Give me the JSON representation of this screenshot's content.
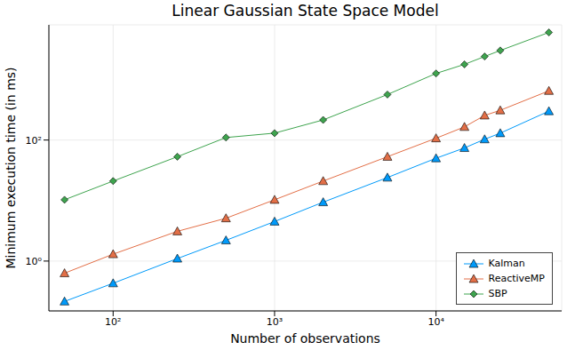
{
  "chart_data": {
    "type": "line",
    "title": "Linear Gaussian State Space Model",
    "x_label": "Number of observations",
    "y_label": "Minimum execution time (in ms)",
    "log": true,
    "grid": true,
    "legend": "bottom-right",
    "x": [
      50,
      100,
      250,
      500,
      1000,
      2000,
      5000,
      10000,
      15000,
      20000,
      25000,
      50000
    ],
    "xlim": [
      40,
      60000
    ],
    "xticks": [
      {
        "value": 100,
        "label": "10²"
      },
      {
        "value": 1000,
        "label": "10³"
      },
      {
        "value": 10000,
        "label": "10⁴"
      }
    ],
    "ylim": [
      0.15,
      8000
    ],
    "yticks": [
      {
        "value": 1,
        "label": "10⁰"
      },
      {
        "value": 100,
        "label": "10²"
      }
    ],
    "series": [
      {
        "name": "Kalman",
        "color": "#009AFA",
        "marker": "triangle",
        "values": [
          0.215,
          0.43,
          1.1,
          2.2,
          4.5,
          9.4,
          24,
          50,
          74,
          103,
          130,
          300
        ]
      },
      {
        "name": "ReactiveMP",
        "color": "#E36F47",
        "marker": "triangle",
        "values": [
          0.63,
          1.3,
          3.1,
          5.1,
          10.3,
          21,
          53,
          107,
          165,
          255,
          310,
          650
        ]
      },
      {
        "name": "SBP",
        "color": "#3EA44E",
        "marker": "diamond",
        "values": [
          10.3,
          21,
          53,
          110,
          130,
          215,
          565,
          1260,
          1780,
          2400,
          3020,
          6000
        ]
      }
    ]
  }
}
